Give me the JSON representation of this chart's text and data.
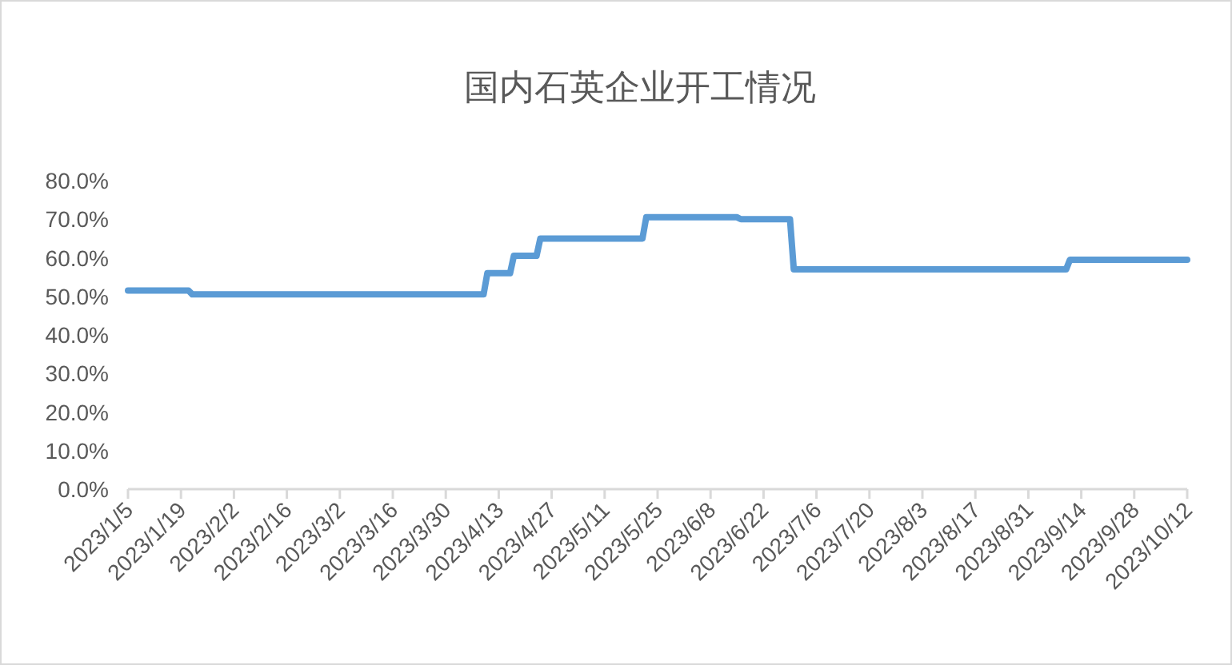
{
  "chart_data": {
    "type": "line",
    "title": "国内石英企业开工情况",
    "x": [
      "2023-01-05",
      "2023-01-21",
      "2023-01-22",
      "2023-04-09",
      "2023-04-10",
      "2023-04-16",
      "2023-04-17",
      "2023-04-23",
      "2023-04-24",
      "2023-05-21",
      "2023-05-22",
      "2023-06-15",
      "2023-06-16",
      "2023-06-29",
      "2023-06-30",
      "2023-09-10",
      "2023-09-11",
      "2023-10-12"
    ],
    "series": [
      {
        "color": "#5b9bd5",
        "values": [
          51.5,
          51.5,
          50.5,
          50.5,
          56,
          56,
          60.5,
          60.5,
          65,
          65,
          70.5,
          70.5,
          70,
          70,
          57,
          57,
          59.5,
          59.5
        ]
      }
    ],
    "ylim": [
      0,
      80
    ],
    "yticks": [
      {
        "value": 0,
        "label": "0.0%"
      },
      {
        "value": 10,
        "label": "10.0%"
      },
      {
        "value": 20,
        "label": "20.0%"
      },
      {
        "value": 30,
        "label": "30.0%"
      },
      {
        "value": 40,
        "label": "40.0%"
      },
      {
        "value": 50,
        "label": "50.0%"
      },
      {
        "value": 60,
        "label": "60.0%"
      },
      {
        "value": 70,
        "label": "70.0%"
      },
      {
        "value": 80,
        "label": "80.0%"
      }
    ],
    "xlim": [
      "2023-01-05",
      "2023-10-12"
    ],
    "xticks": [
      {
        "value": "2023-01-05",
        "label": "2023/1/5"
      },
      {
        "value": "2023-01-19",
        "label": "2023/1/19"
      },
      {
        "value": "2023-02-02",
        "label": "2023/2/2"
      },
      {
        "value": "2023-02-16",
        "label": "2023/2/16"
      },
      {
        "value": "2023-03-02",
        "label": "2023/3/2"
      },
      {
        "value": "2023-03-16",
        "label": "2023/3/16"
      },
      {
        "value": "2023-03-30",
        "label": "2023/3/30"
      },
      {
        "value": "2023-04-13",
        "label": "2023/4/13"
      },
      {
        "value": "2023-04-27",
        "label": "2023/4/27"
      },
      {
        "value": "2023-05-11",
        "label": "2023/5/11"
      },
      {
        "value": "2023-05-25",
        "label": "2023/5/25"
      },
      {
        "value": "2023-06-08",
        "label": "2023/6/8"
      },
      {
        "value": "2023-06-22",
        "label": "2023/6/22"
      },
      {
        "value": "2023-07-06",
        "label": "2023/7/6"
      },
      {
        "value": "2023-07-20",
        "label": "2023/7/20"
      },
      {
        "value": "2023-08-03",
        "label": "2023/8/3"
      },
      {
        "value": "2023-08-17",
        "label": "2023/8/17"
      },
      {
        "value": "2023-08-31",
        "label": "2023/8/31"
      },
      {
        "value": "2023-09-14",
        "label": "2023/9/14"
      },
      {
        "value": "2023-09-28",
        "label": "2023/9/28"
      },
      {
        "value": "2023-10-12",
        "label": "2023/10/12"
      }
    ],
    "grid": false,
    "marker": "none",
    "line_style": "solid"
  }
}
